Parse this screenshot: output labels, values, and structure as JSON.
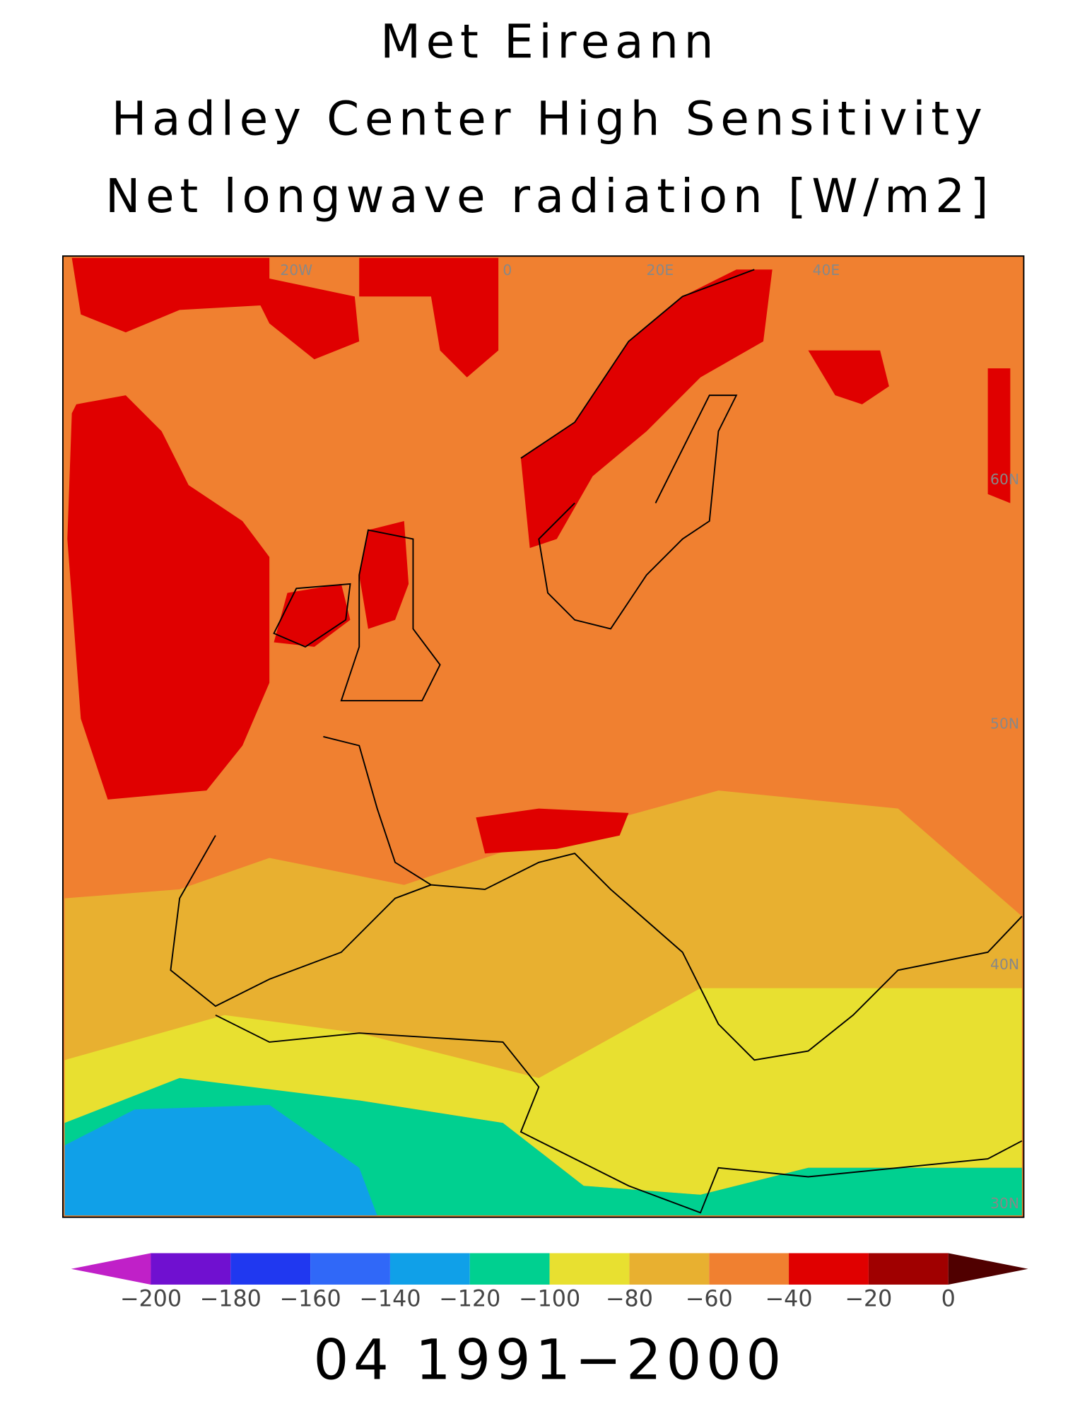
{
  "header": {
    "title": [
      "Met Eireann",
      "Hadley Center High Sensitivity",
      "Net longwave radiation [W/m2]"
    ]
  },
  "map": {
    "lon_labels": [
      "20W",
      "0",
      "20E",
      "40E"
    ],
    "lat_labels": [
      "60N",
      "50N",
      "40N",
      "30N"
    ]
  },
  "colorbar": {
    "colors": [
      "#c020c8",
      "#7010d0",
      "#2038f0",
      "#3068f8",
      "#10a0e8",
      "#00d090",
      "#e8e030",
      "#e8b030",
      "#f08030",
      "#e00000",
      "#a00000",
      "#500000"
    ],
    "ticks": [
      {
        "value": -200,
        "label": "−200"
      },
      {
        "value": -180,
        "label": "−180"
      },
      {
        "value": -160,
        "label": "−160"
      },
      {
        "value": -140,
        "label": "−140"
      },
      {
        "value": -120,
        "label": "−120"
      },
      {
        "value": -100,
        "label": "−100"
      },
      {
        "value": -80,
        "label": "−80"
      },
      {
        "value": -60,
        "label": "−60"
      },
      {
        "value": -40,
        "label": "−40"
      },
      {
        "value": -20,
        "label": "−20"
      },
      {
        "value": 0,
        "label": "0"
      }
    ]
  },
  "footer": {
    "period": "04 1991−2000"
  }
}
